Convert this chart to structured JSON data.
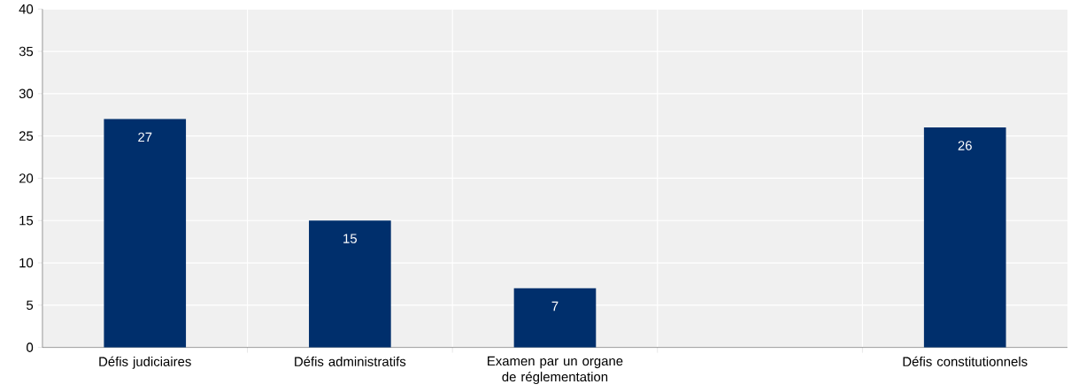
{
  "chart_data": {
    "type": "bar",
    "categories": [
      "Défis judiciaires",
      "Défis administratifs",
      "Examen par un organe de réglementation",
      null,
      "Défis constitutionnels"
    ],
    "values": [
      27,
      15,
      7,
      null,
      26
    ],
    "color": "#002f6c",
    "ylim": [
      0,
      40
    ],
    "yticks": [
      0,
      5,
      10,
      15,
      20,
      25,
      30,
      35,
      40
    ],
    "grid": true,
    "data_labels": true
  }
}
